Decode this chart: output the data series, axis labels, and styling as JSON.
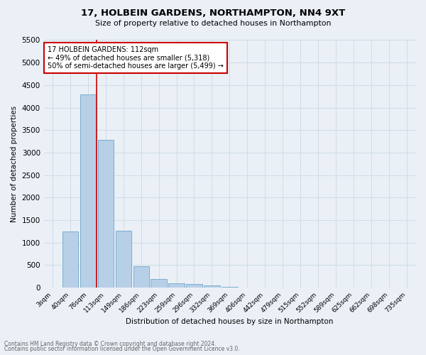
{
  "title": "17, HOLBEIN GARDENS, NORTHAMPTON, NN4 9XT",
  "subtitle": "Size of property relative to detached houses in Northampton",
  "xlabel": "Distribution of detached houses by size in Northampton",
  "ylabel": "Number of detached properties",
  "footnote1": "Contains HM Land Registry data © Crown copyright and database right 2024.",
  "footnote2": "Contains public sector information licensed under the Open Government Licence v3.0.",
  "bar_labels": [
    "3sqm",
    "40sqm",
    "76sqm",
    "113sqm",
    "149sqm",
    "186sqm",
    "223sqm",
    "259sqm",
    "296sqm",
    "332sqm",
    "369sqm",
    "406sqm",
    "442sqm",
    "479sqm",
    "515sqm",
    "552sqm",
    "589sqm",
    "625sqm",
    "662sqm",
    "698sqm",
    "735sqm"
  ],
  "bar_values": [
    0,
    1250,
    4300,
    3280,
    1270,
    480,
    190,
    90,
    75,
    40,
    15,
    0,
    0,
    0,
    0,
    0,
    0,
    0,
    0,
    0,
    0
  ],
  "bar_color": "#b8cfe8",
  "bar_edge_color": "#7aaed0",
  "vline_color": "#cc0000",
  "ylim": [
    0,
    5500
  ],
  "yticks": [
    0,
    500,
    1000,
    1500,
    2000,
    2500,
    3000,
    3500,
    4000,
    4500,
    5000,
    5500
  ],
  "annotation_text": "17 HOLBEIN GARDENS: 112sqm\n← 49% of detached houses are smaller (5,318)\n50% of semi-detached houses are larger (5,499) →",
  "annotation_box_color": "#ffffff",
  "annotation_box_edge": "#cc0000",
  "grid_color": "#d0dce8",
  "bg_color": "#eaf0f6"
}
